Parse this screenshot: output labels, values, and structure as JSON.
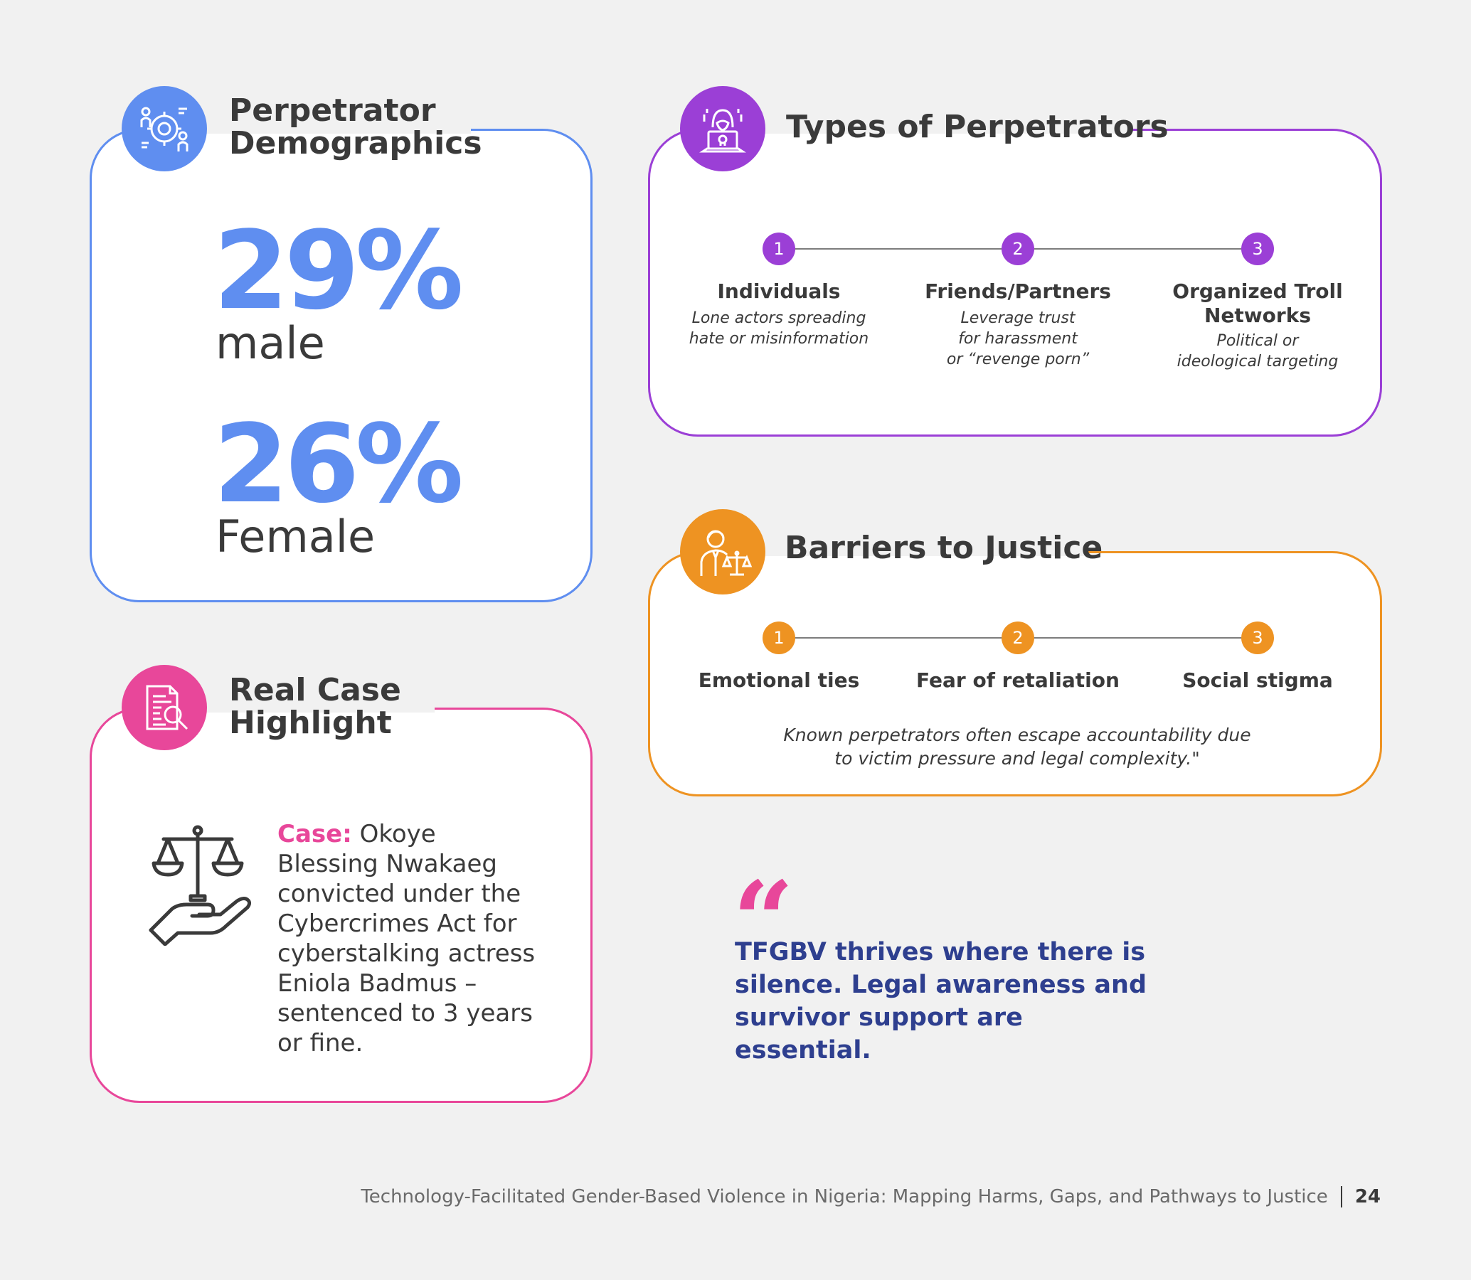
{
  "demographics": {
    "title_line1": "Perpetrator",
    "title_line2": "Demographics",
    "accent": "#5f8ef0",
    "icon": "demographics-icon",
    "stats": [
      {
        "value": "29%",
        "label": "male"
      },
      {
        "value": "26%",
        "label": "Female"
      }
    ]
  },
  "types": {
    "title": "Types of Perpetrators",
    "accent": "#9b3fd6",
    "icon": "hacker-laptop-icon",
    "steps": [
      {
        "num": "1",
        "title": "Individuals",
        "desc_line1": "Lone actors spreading",
        "desc_line2": "hate or misinformation",
        "desc_line3": ""
      },
      {
        "num": "2",
        "title": "Friends/Partners",
        "desc_line1": "Leverage trust",
        "desc_line2": "for harassment",
        "desc_line3": "or “revenge porn”"
      },
      {
        "num": "3",
        "title_line1": "Organized Troll",
        "title_line2": "Networks",
        "desc_line1": "Political or",
        "desc_line2": "ideological targeting"
      }
    ]
  },
  "barriers": {
    "title": "Barriers to Justice",
    "accent": "#ee9322",
    "icon": "judge-scales-icon",
    "steps": [
      {
        "num": "1",
        "title": "Emotional ties"
      },
      {
        "num": "2",
        "title": "Fear of retaliation"
      },
      {
        "num": "3",
        "title": "Social stigma"
      }
    ],
    "note_line1": "Known perpetrators often escape accountability due",
    "note_line2": "to victim pressure and legal complexity.\""
  },
  "case": {
    "title_line1": "Real Case",
    "title_line2": "Highlight",
    "accent": "#e8479a",
    "icon": "document-search-icon",
    "illustration": "scales-in-hand-icon",
    "label": "Case:",
    "text": "Okoye Blessing Nwakaeg convicted under the Cybercrimes Act for cyberstalking actress Eniola Badmus – sentenced to 3 years or fine."
  },
  "quote": {
    "mark": "“",
    "text": "TFGBV thrives where there is silence. Legal awareness and survivor support are essential."
  },
  "footer": {
    "title": "Technology-Facilitated Gender-Based Violence in Nigeria: Mapping Harms, Gaps, and Pathways to Justice",
    "page": "24"
  }
}
